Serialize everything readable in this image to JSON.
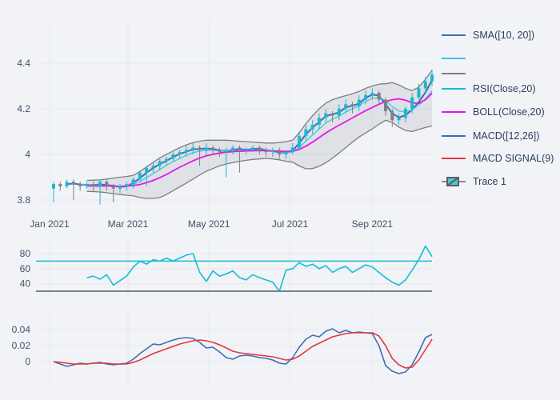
{
  "page": {
    "background": "#f2f3f7",
    "grid_color": "#e4e8f0",
    "tick_color": "#42506a"
  },
  "legend": {
    "items": [
      {
        "label": "SMA([10, 20])",
        "color": "#3d6fb4",
        "kind": "line"
      },
      {
        "label": "",
        "color": "#41c3e8",
        "kind": "line"
      },
      {
        "label": "",
        "color": "#7b7f84",
        "kind": "line"
      },
      {
        "label": "RSI(Close,20)",
        "color": "#14bed2",
        "kind": "line"
      },
      {
        "label": "BOLL(Close,20)",
        "color": "#e814e8",
        "kind": "line"
      },
      {
        "label": "MACD([12,26])",
        "color": "#3d6fb4",
        "kind": "line"
      },
      {
        "label": "MACD SIGNAL(9)",
        "color": "#e4373e",
        "kind": "line"
      },
      {
        "label": "Trace 1",
        "color": "#1db8ca",
        "kind": "candlestick"
      }
    ]
  },
  "chart_data": {
    "type": "multi-panel-financial",
    "dates": [
      "2021-01-04",
      "2021-01-09",
      "2021-01-14",
      "2021-01-19",
      "2021-01-24",
      "2021-01-29",
      "2021-02-03",
      "2021-02-08",
      "2021-02-13",
      "2021-02-18",
      "2021-02-23",
      "2021-02-28",
      "2021-03-05",
      "2021-03-10",
      "2021-03-15",
      "2021-03-20",
      "2021-03-25",
      "2021-03-30",
      "2021-04-04",
      "2021-04-09",
      "2021-04-14",
      "2021-04-19",
      "2021-04-24",
      "2021-04-29",
      "2021-05-04",
      "2021-05-09",
      "2021-05-14",
      "2021-05-19",
      "2021-05-24",
      "2021-05-29",
      "2021-06-03",
      "2021-06-08",
      "2021-06-13",
      "2021-06-18",
      "2021-06-23",
      "2021-06-28",
      "2021-07-03",
      "2021-07-08",
      "2021-07-13",
      "2021-07-18",
      "2021-07-23",
      "2021-07-28",
      "2021-08-02",
      "2021-08-07",
      "2021-08-12",
      "2021-08-17",
      "2021-08-22",
      "2021-08-27",
      "2021-09-01",
      "2021-09-06",
      "2021-09-11",
      "2021-09-16",
      "2021-09-21",
      "2021-09-26",
      "2021-10-01",
      "2021-10-06",
      "2021-10-11",
      "2021-10-16"
    ],
    "x_axis": {
      "tick_labels": [
        "Jan 2021",
        "Mar 2021",
        "May 2021",
        "Jul 2021",
        "Sep 2021"
      ],
      "tick_dates": [
        "2021-01-01",
        "2021-03-01",
        "2021-05-01",
        "2021-07-01",
        "2021-09-01"
      ]
    },
    "panels": [
      {
        "id": "price",
        "type": "candlestick",
        "trace_name": "Trace 1",
        "ylim": [
          3.75,
          4.45
        ],
        "yticks": [
          3.8,
          4,
          4.2,
          4.4
        ],
        "ytick_labels": [
          "3.8",
          "4",
          "4.2",
          "4.4"
        ],
        "up_color": "#1db8ca",
        "down_color": "#7e8084",
        "band_fill": "rgba(125,130,140,0.16)",
        "open": [
          3.85,
          3.87,
          3.86,
          3.88,
          3.87,
          3.86,
          3.87,
          3.86,
          3.88,
          3.86,
          3.85,
          3.86,
          3.87,
          3.89,
          3.92,
          3.94,
          3.95,
          3.97,
          3.98,
          4.0,
          4.01,
          4.02,
          4.03,
          4.02,
          4.03,
          4.02,
          4.01,
          4.02,
          4.03,
          4.02,
          4.02,
          4.03,
          4.02,
          4.01,
          4.02,
          4.0,
          4.01,
          4.03,
          4.08,
          4.11,
          4.13,
          4.16,
          4.18,
          4.17,
          4.2,
          4.22,
          4.21,
          4.24,
          4.26,
          4.27,
          4.24,
          4.19,
          4.15,
          4.16,
          4.2,
          4.25,
          4.29,
          4.32
        ],
        "high": [
          3.88,
          3.88,
          3.89,
          3.89,
          3.88,
          3.88,
          3.88,
          3.89,
          3.89,
          3.87,
          3.87,
          3.88,
          3.9,
          3.93,
          3.95,
          3.97,
          3.98,
          3.99,
          4.01,
          4.02,
          4.04,
          4.05,
          4.04,
          4.05,
          4.04,
          4.03,
          4.03,
          4.04,
          4.04,
          4.03,
          4.04,
          4.04,
          4.03,
          4.03,
          4.03,
          4.02,
          4.05,
          4.1,
          4.13,
          4.15,
          4.18,
          4.2,
          4.19,
          4.22,
          4.24,
          4.23,
          4.26,
          4.28,
          4.29,
          4.28,
          4.25,
          4.2,
          4.18,
          4.21,
          4.27,
          4.31,
          4.34,
          4.37
        ],
        "low": [
          3.79,
          3.84,
          3.85,
          3.8,
          3.84,
          3.85,
          3.84,
          3.78,
          3.84,
          3.79,
          3.83,
          3.84,
          3.85,
          3.88,
          3.86,
          3.92,
          3.93,
          3.95,
          3.97,
          3.98,
          3.99,
          4.0,
          3.95,
          4.0,
          4.0,
          3.99,
          3.9,
          4.0,
          3.92,
          4.0,
          4.01,
          4.0,
          3.99,
          3.99,
          3.98,
          3.98,
          4.0,
          4.02,
          4.06,
          4.09,
          4.11,
          4.14,
          4.14,
          4.15,
          4.18,
          4.18,
          4.19,
          4.22,
          4.24,
          4.22,
          4.17,
          4.12,
          4.13,
          4.14,
          4.18,
          4.24,
          4.27,
          4.3
        ],
        "close": [
          3.87,
          3.86,
          3.88,
          3.87,
          3.86,
          3.87,
          3.86,
          3.88,
          3.86,
          3.85,
          3.86,
          3.87,
          3.89,
          3.92,
          3.94,
          3.95,
          3.97,
          3.98,
          4.0,
          4.01,
          4.02,
          4.03,
          4.02,
          4.03,
          4.02,
          4.01,
          4.02,
          4.03,
          4.02,
          4.02,
          4.03,
          4.02,
          4.01,
          4.02,
          4.0,
          4.01,
          4.03,
          4.08,
          4.11,
          4.13,
          4.16,
          4.18,
          4.17,
          4.2,
          4.22,
          4.21,
          4.24,
          4.26,
          4.27,
          4.24,
          4.19,
          4.15,
          4.16,
          4.2,
          4.25,
          4.29,
          4.32,
          4.35
        ],
        "overlays": [
          {
            "name": "SMA(10)",
            "color": "#3d6fb4",
            "values": [
              null,
              null,
              3.87,
              3.872,
              3.868,
              3.866,
              3.866,
              3.868,
              3.866,
              3.862,
              3.858,
              3.86,
              3.875,
              3.895,
              3.92,
              3.94,
              3.958,
              3.972,
              3.988,
              4.002,
              4.012,
              4.022,
              4.024,
              4.026,
              4.024,
              4.018,
              4.014,
              4.02,
              4.024,
              4.02,
              4.024,
              4.026,
              4.018,
              4.014,
              4.01,
              4.006,
              4.016,
              4.05,
              4.088,
              4.118,
              4.142,
              4.168,
              4.176,
              4.184,
              4.206,
              4.214,
              4.222,
              4.248,
              4.262,
              4.258,
              4.22,
              4.18,
              4.162,
              4.172,
              4.196,
              4.23,
              4.272,
              4.325
            ]
          },
          {
            "name": "SMA(20)",
            "color": "#41c3e8",
            "values": [
              null,
              null,
              null,
              null,
              3.868,
              3.866,
              3.866,
              3.864,
              3.862,
              3.86,
              3.86,
              3.862,
              3.868,
              3.88,
              3.898,
              3.916,
              3.934,
              3.952,
              3.968,
              3.982,
              3.996,
              4.008,
              4.014,
              4.018,
              4.018,
              4.016,
              4.014,
              4.016,
              4.018,
              4.018,
              4.02,
              4.02,
              4.018,
              4.016,
              4.012,
              4.008,
              4.01,
              4.03,
              4.058,
              4.086,
              4.112,
              4.138,
              4.154,
              4.168,
              4.186,
              4.2,
              4.214,
              4.232,
              4.246,
              4.25,
              4.236,
              4.21,
              4.19,
              4.186,
              4.196,
              4.216,
              4.244,
              4.278
            ]
          },
          {
            "name": "BOLL upper",
            "color": "#7b7f84",
            "values": [
              null,
              null,
              null,
              null,
              null,
              3.886,
              3.887,
              3.888,
              3.892,
              3.896,
              3.9,
              3.903,
              3.908,
              3.925,
              3.945,
              3.965,
              3.985,
              4.0,
              4.015,
              4.03,
              4.042,
              4.052,
              4.058,
              4.062,
              4.062,
              4.062,
              4.062,
              4.06,
              4.058,
              4.056,
              4.054,
              4.052,
              4.05,
              4.05,
              4.052,
              4.056,
              4.062,
              4.095,
              4.135,
              4.17,
              4.2,
              4.225,
              4.24,
              4.25,
              4.258,
              4.266,
              4.276,
              4.29,
              4.3,
              4.308,
              4.31,
              4.315,
              4.305,
              4.29,
              4.28,
              4.295,
              4.33,
              4.37
            ]
          },
          {
            "name": "BOLL(Close,20) mid",
            "color": "#e814e8",
            "values": [
              null,
              null,
              null,
              null,
              null,
              3.862,
              3.862,
              3.861,
              3.862,
              3.861,
              3.86,
              3.861,
              3.863,
              3.868,
              3.876,
              3.886,
              3.898,
              3.912,
              3.928,
              3.944,
              3.958,
              3.972,
              3.984,
              3.994,
              4.0,
              4.006,
              4.01,
              4.012,
              4.014,
              4.015,
              4.016,
              4.016,
              4.016,
              4.015,
              4.014,
              4.013,
              4.014,
              4.022,
              4.036,
              4.054,
              4.074,
              4.094,
              4.112,
              4.128,
              4.144,
              4.16,
              4.176,
              4.192,
              4.206,
              4.22,
              4.232,
              4.24,
              4.244,
              4.238,
              4.226,
              4.224,
              4.24,
              4.268
            ]
          },
          {
            "name": "BOLL lower",
            "color": "#7b7f84",
            "values": [
              null,
              null,
              null,
              null,
              null,
              3.838,
              3.837,
              3.835,
              3.832,
              3.828,
              3.824,
              3.821,
              3.818,
              3.811,
              3.807,
              3.807,
              3.811,
              3.824,
              3.841,
              3.858,
              3.874,
              3.892,
              3.91,
              3.926,
              3.938,
              3.95,
              3.958,
              3.964,
              3.97,
              3.974,
              3.978,
              3.98,
              3.982,
              3.98,
              3.976,
              3.97,
              3.966,
              3.949,
              3.937,
              3.938,
              3.948,
              3.963,
              3.984,
              4.006,
              4.03,
              4.054,
              4.076,
              4.094,
              4.112,
              4.132,
              4.15,
              4.14,
              4.12,
              4.105,
              4.1,
              4.11,
              4.118,
              4.125
            ]
          }
        ]
      },
      {
        "id": "rsi",
        "type": "line",
        "ylim": [
          25,
          97
        ],
        "yticks": [
          40,
          60,
          80
        ],
        "ytick_labels": [
          "40",
          "60",
          "80"
        ],
        "series": [
          {
            "name": "RSI(Close,20)",
            "color": "#14bed2",
            "values": [
              null,
              null,
              null,
              null,
              null,
              48,
              50,
              46,
              52,
              38,
              44,
              50,
              62,
              70,
              66,
              72,
              70,
              74,
              70,
              74,
              78,
              80,
              55,
              43,
              57,
              50,
              53,
              57,
              48,
              45,
              52,
              48,
              45,
              42,
              30,
              58,
              60,
              68,
              63,
              66,
              60,
              64,
              55,
              60,
              63,
              55,
              60,
              65,
              62,
              55,
              48,
              42,
              38,
              45,
              58,
              72,
              90,
              76
            ]
          }
        ],
        "hlines": [
          {
            "value": 70,
            "color": "#14bed2",
            "width": 1.5
          },
          {
            "value": 30,
            "color": "#7b7f84",
            "width": 2
          }
        ]
      },
      {
        "id": "macd",
        "type": "line",
        "ylim": [
          -0.028,
          0.052
        ],
        "yticks": [
          0,
          0.02,
          0.04
        ],
        "ytick_labels": [
          "0",
          "0.02",
          "0.04"
        ],
        "series": [
          {
            "name": "MACD([12,26])",
            "color": "#3d6fb4",
            "values": [
              0.0,
              -0.003,
              -0.006,
              -0.004,
              -0.002,
              -0.003,
              -0.002,
              -0.001,
              -0.003,
              -0.004,
              -0.003,
              -0.002,
              0.003,
              0.01,
              0.016,
              0.022,
              0.021,
              0.024,
              0.027,
              0.029,
              0.03,
              0.029,
              0.024,
              0.017,
              0.018,
              0.012,
              0.005,
              0.003,
              0.007,
              0.008,
              0.007,
              0.005,
              0.004,
              0.002,
              -0.002,
              -0.003,
              0.005,
              0.018,
              0.028,
              0.033,
              0.031,
              0.038,
              0.041,
              0.036,
              0.039,
              0.036,
              0.037,
              0.036,
              0.035,
              0.02,
              -0.005,
              -0.012,
              -0.015,
              -0.013,
              -0.004,
              0.012,
              0.03,
              0.034
            ]
          },
          {
            "name": "MACD SIGNAL(9)",
            "color": "#e4373e",
            "values": [
              0.0,
              -0.001,
              -0.002,
              -0.003,
              -0.003,
              -0.003,
              -0.002,
              -0.002,
              -0.002,
              -0.003,
              -0.003,
              -0.003,
              -0.001,
              0.002,
              0.006,
              0.01,
              0.013,
              0.016,
              0.019,
              0.022,
              0.024,
              0.026,
              0.027,
              0.026,
              0.024,
              0.021,
              0.017,
              0.013,
              0.011,
              0.01,
              0.009,
              0.008,
              0.007,
              0.006,
              0.004,
              0.002,
              0.003,
              0.007,
              0.013,
              0.019,
              0.023,
              0.027,
              0.031,
              0.033,
              0.035,
              0.036,
              0.036,
              0.036,
              0.036,
              0.032,
              0.02,
              0.004,
              -0.004,
              -0.008,
              -0.007,
              0.002,
              0.015,
              0.028
            ]
          }
        ]
      }
    ]
  }
}
